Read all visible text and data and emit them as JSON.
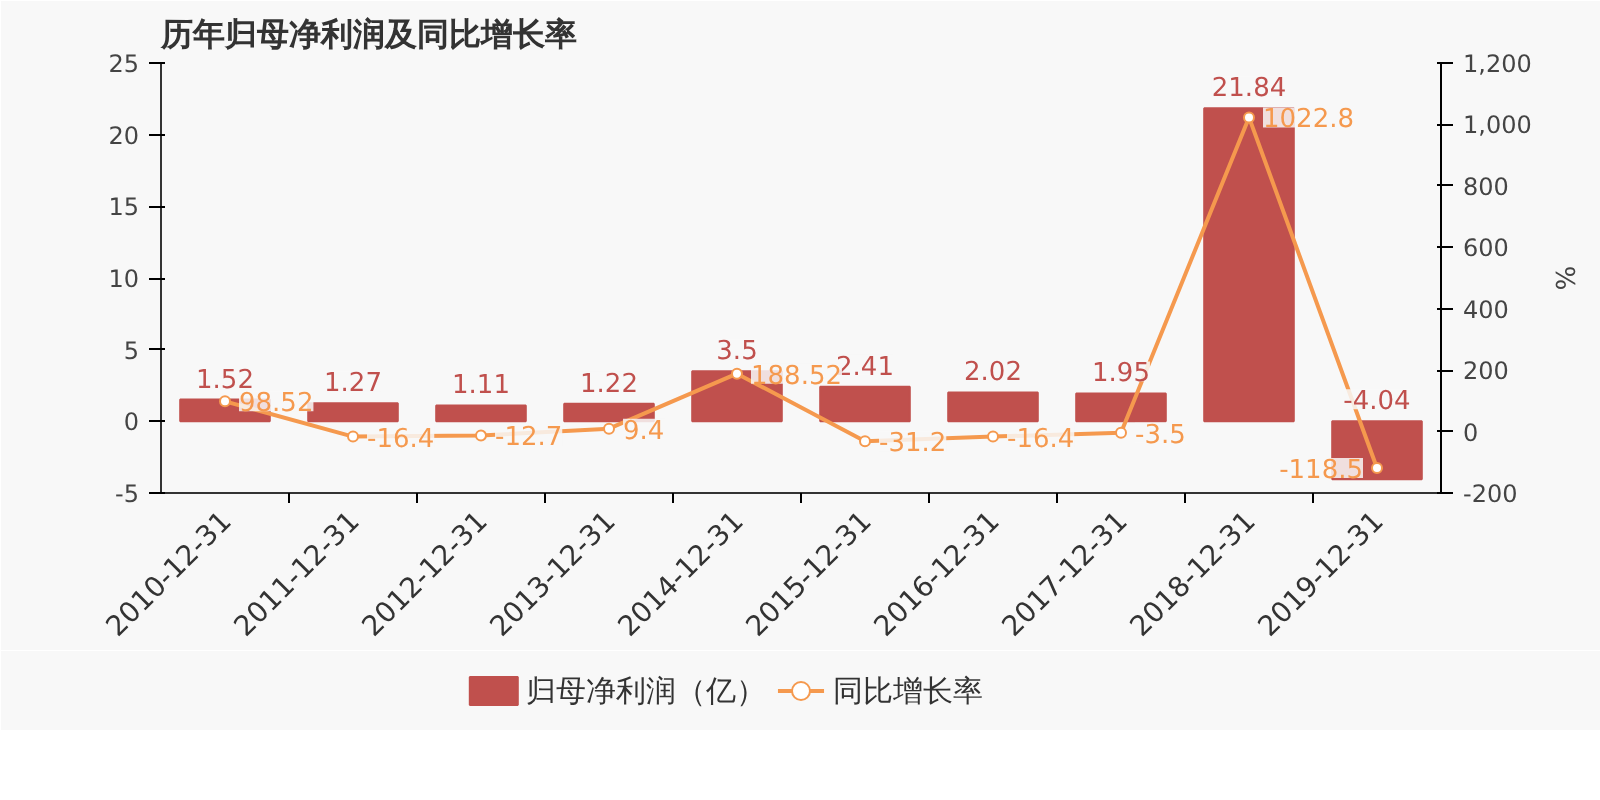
{
  "chart_data": {
    "type": "bar",
    "title": "历年归母净利润及同比增长率",
    "y2label": "%",
    "categories": [
      "2010-12-31",
      "2011-12-31",
      "2012-12-31",
      "2013-12-31",
      "2014-12-31",
      "2015-12-31",
      "2016-12-31",
      "2017-12-31",
      "2018-12-31",
      "2019-12-31"
    ],
    "series": [
      {
        "name": "归母净利润（亿）",
        "color": "#c0504d",
        "values": [
          1.52,
          1.27,
          1.11,
          1.22,
          3.5,
          2.41,
          2.02,
          1.95,
          21.84,
          -4.04
        ]
      },
      {
        "name": "同比增长率",
        "type": "line",
        "axis": "y2",
        "color": "#f5994e",
        "marker": "circle",
        "values": [
          98.52,
          -16.4,
          -12.7,
          9.4,
          188.52,
          -31.2,
          -16.4,
          -3.5,
          1022.8,
          -118.5
        ]
      }
    ],
    "ylim": [
      -5,
      25
    ],
    "yticks": [
      -5,
      0,
      5,
      10,
      15,
      20,
      25
    ],
    "y2lim": [
      -200,
      1200
    ],
    "y2ticks": [
      {
        "value": -200,
        "label": "-200"
      },
      {
        "value": 0,
        "label": "0"
      },
      {
        "value": 200,
        "label": "200"
      },
      {
        "value": 400,
        "label": "400"
      },
      {
        "value": 600,
        "label": "600"
      },
      {
        "value": 800,
        "label": "800"
      },
      {
        "value": 1000,
        "label": "1,000"
      },
      {
        "value": 1200,
        "label": "1,200"
      }
    ],
    "data_labels": true,
    "grid": false,
    "legend": "bottom"
  }
}
